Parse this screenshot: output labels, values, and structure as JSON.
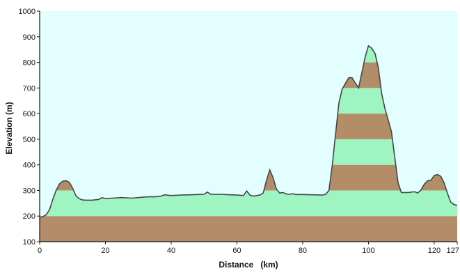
{
  "colors": {
    "background": "#ffffff",
    "plot_background": "#e2feff",
    "band_light": "#9ff5c2",
    "band_dark": "#b38d67",
    "profile_line": "#454545",
    "axis": "#111111"
  },
  "chart_data": {
    "type": "area",
    "title": "",
    "xlabel": "Distance   (km)",
    "ylabel": "Elevation (m)",
    "xlim": [
      0,
      127
    ],
    "ylim": [
      100,
      1000
    ],
    "grid": false,
    "legend": "none",
    "x_ticks": [
      0,
      20,
      40,
      60,
      80,
      100,
      120,
      127
    ],
    "x_tick_labels": [
      "0",
      "20",
      "40",
      "60",
      "80",
      "100",
      "120",
      "127"
    ],
    "y_ticks": [
      100,
      200,
      300,
      400,
      500,
      600,
      700,
      800,
      900,
      1000
    ],
    "y_tick_labels": [
      "100",
      "200",
      "300",
      "400",
      "500",
      "600",
      "700",
      "800",
      "900",
      "1000"
    ],
    "elevation_bands": [
      {
        "from": 100,
        "to": 200,
        "tone": "dark"
      },
      {
        "from": 200,
        "to": 300,
        "tone": "light"
      },
      {
        "from": 300,
        "to": 400,
        "tone": "dark"
      },
      {
        "from": 400,
        "to": 500,
        "tone": "light"
      },
      {
        "from": 500,
        "to": 600,
        "tone": "dark"
      },
      {
        "from": 600,
        "to": 700,
        "tone": "light"
      },
      {
        "from": 700,
        "to": 800,
        "tone": "dark"
      },
      {
        "from": 800,
        "to": 900,
        "tone": "light"
      }
    ],
    "series": [
      {
        "x": [
          0,
          1,
          2,
          3,
          4,
          5,
          6,
          7,
          8,
          9,
          10,
          11,
          12,
          13,
          14,
          16,
          18,
          19,
          20,
          22,
          25,
          28,
          30,
          33,
          35,
          37,
          38,
          40,
          43,
          46,
          48,
          50,
          51,
          52,
          55,
          58,
          60,
          62,
          63,
          64,
          65,
          67,
          68,
          69,
          70,
          71,
          72,
          73,
          74,
          75,
          76,
          77,
          78,
          80,
          83,
          86,
          87,
          88,
          89,
          90,
          91,
          92,
          93,
          94,
          95,
          96,
          97,
          98,
          99,
          100,
          101,
          102,
          103,
          104,
          105,
          106,
          107,
          108,
          109,
          110,
          112,
          114,
          115,
          116,
          117,
          118,
          119,
          120,
          121,
          122,
          123,
          124,
          125,
          126,
          127
        ],
        "y": [
          196,
          198,
          205,
          225,
          265,
          300,
          325,
          336,
          338,
          332,
          310,
          280,
          268,
          263,
          262,
          262,
          265,
          272,
          268,
          270,
          272,
          270,
          272,
          275,
          275,
          278,
          283,
          280,
          282,
          283,
          284,
          285,
          294,
          285,
          285,
          283,
          282,
          280,
          298,
          281,
          278,
          282,
          290,
          340,
          380,
          350,
          305,
          290,
          292,
          286,
          285,
          287,
          284,
          284,
          283,
          282,
          285,
          300,
          400,
          520,
          640,
          695,
          718,
          740,
          740,
          720,
          700,
          760,
          820,
          865,
          855,
          835,
          780,
          680,
          620,
          575,
          530,
          430,
          330,
          292,
          292,
          295,
          290,
          302,
          325,
          338,
          340,
          358,
          362,
          355,
          330,
          290,
          255,
          245,
          242
        ]
      }
    ]
  }
}
